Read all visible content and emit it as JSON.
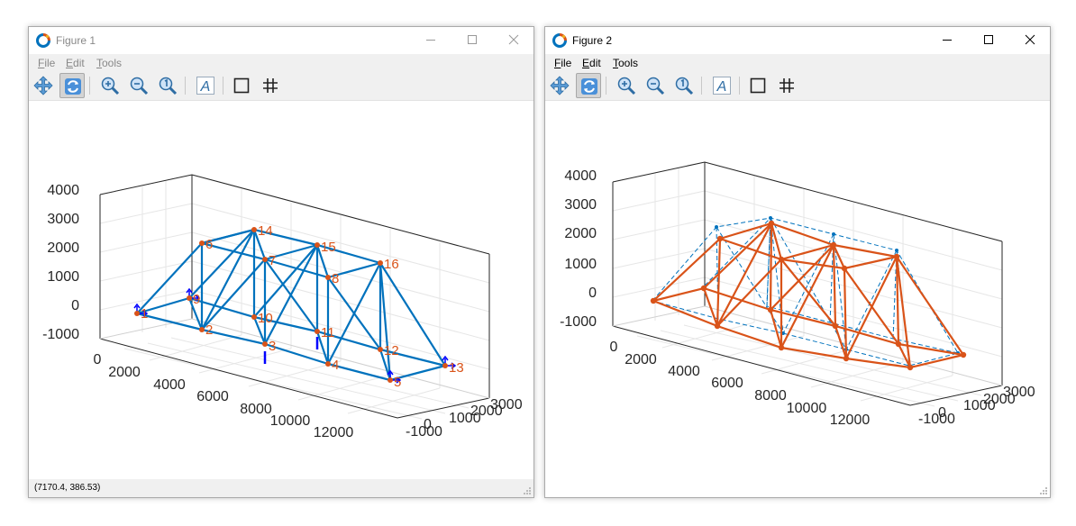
{
  "windows": [
    {
      "title": "Figure 1",
      "menu": [
        "File",
        "Edit",
        "Tools"
      ],
      "status": "(7170.4, 386.53)",
      "ticks_vertical": [
        "4000",
        "3000",
        "2000",
        "1000",
        "0",
        "-1000"
      ],
      "ticks_x": [
        "0",
        "2000",
        "4000",
        "6000",
        "8000",
        "10000",
        "12000"
      ],
      "ticks_y": [
        "-1000",
        "0",
        "1000",
        "2000",
        "3000"
      ],
      "node_labels": [
        "1",
        "2",
        "3",
        "4",
        "5",
        "6",
        "7",
        "8",
        "9",
        "10",
        "11",
        "12",
        "13",
        "14",
        "15",
        "16"
      ],
      "colors": {
        "members": "#0072bd",
        "nodes": "#d95319",
        "supports": "#0000ff"
      }
    },
    {
      "title": "Figure 2",
      "menu": [
        "File",
        "Edit",
        "Tools"
      ],
      "ticks_vertical": [
        "4000",
        "3000",
        "2000",
        "1000",
        "0",
        "-1000"
      ],
      "ticks_x": [
        "0",
        "2000",
        "4000",
        "6000",
        "8000",
        "10000",
        "12000"
      ],
      "ticks_y": [
        "-1000",
        "0",
        "1000",
        "2000",
        "3000"
      ],
      "colors": {
        "deformed": "#d95319",
        "original": "#0072bd"
      }
    }
  ],
  "toolbar_icons": [
    "pan-icon",
    "rotate-icon",
    "zoom-in-icon",
    "zoom-out-icon",
    "zoom-reset-icon",
    "text-icon",
    "box-icon",
    "grid-icon"
  ]
}
